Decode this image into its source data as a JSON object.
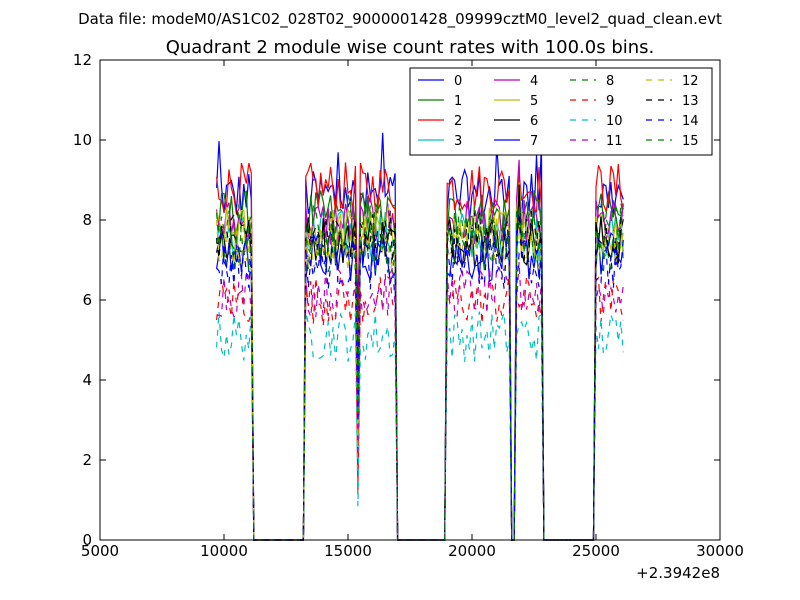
{
  "header": {
    "suptitle": "Data file: modeM0/AS1C02_028T02_9000001428_09999cztM0_level2_quad_clean.evt"
  },
  "chart_data": {
    "type": "line",
    "title": "Quadrant 2 module wise count rates with 100.0s bins.",
    "xlabel": "",
    "ylabel": "",
    "x_offset_label": "+2.3942e8",
    "xlim": [
      5000,
      30000
    ],
    "ylim": [
      0,
      12
    ],
    "xticks": [
      5000,
      10000,
      15000,
      20000,
      25000,
      30000
    ],
    "yticks": [
      0,
      2,
      4,
      6,
      8,
      10,
      12
    ],
    "grid": false,
    "legend_position": "top-right",
    "x_range_of_data": [
      9700,
      26100
    ],
    "segments": [
      [
        9700,
        11100
      ],
      [
        13300,
        16950
      ],
      [
        19000,
        21500
      ],
      [
        21800,
        22850
      ],
      [
        24950,
        26100
      ]
    ],
    "series": [
      {
        "name": "0",
        "color": "#0000ff",
        "dash": "solid",
        "level": 8.6
      },
      {
        "name": "1",
        "color": "#008000",
        "dash": "solid",
        "level": 8.1
      },
      {
        "name": "2",
        "color": "#ff0000",
        "dash": "solid",
        "level": 8.8
      },
      {
        "name": "3",
        "color": "#00bfbf",
        "dash": "solid",
        "level": 7.6
      },
      {
        "name": "4",
        "color": "#bf00bf",
        "dash": "solid",
        "level": 7.9
      },
      {
        "name": "5",
        "color": "#bfbf00",
        "dash": "solid",
        "level": 7.7
      },
      {
        "name": "6",
        "color": "#000000",
        "dash": "solid",
        "level": 7.5
      },
      {
        "name": "7",
        "color": "#0000ff",
        "dash": "solid",
        "level": 7.1
      },
      {
        "name": "8",
        "color": "#008000",
        "dash": "dashed",
        "level": 7.3
      },
      {
        "name": "9",
        "color": "#ff0000",
        "dash": "dashed",
        "level": 6.0
      },
      {
        "name": "10",
        "color": "#00bfbf",
        "dash": "dashed",
        "level": 5.1
      },
      {
        "name": "11",
        "color": "#bf00bf",
        "dash": "dashed",
        "level": 6.2
      },
      {
        "name": "12",
        "color": "#bfbf00",
        "dash": "dashed",
        "level": 7.4
      },
      {
        "name": "13",
        "color": "#000000",
        "dash": "dashed",
        "level": 7.6
      },
      {
        "name": "14",
        "color": "#0000ff",
        "dash": "dashed",
        "level": 6.9
      },
      {
        "name": "15",
        "color": "#008000",
        "dash": "dashed",
        "level": 7.8
      }
    ]
  }
}
